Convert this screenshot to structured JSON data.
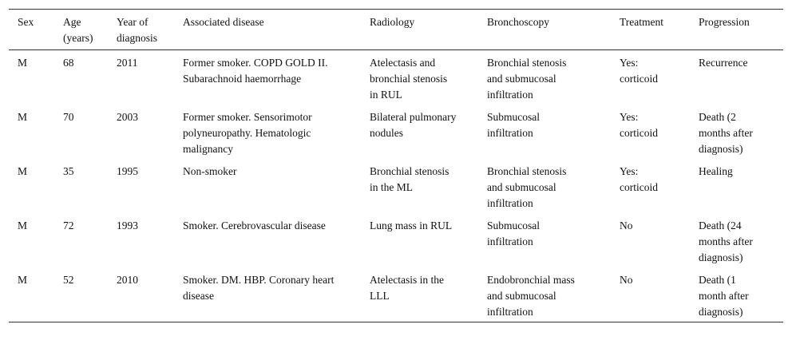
{
  "table": {
    "columns": [
      "Sex",
      "Age (years)",
      "Year of diagnosis",
      "Associated disease",
      "Radiology",
      "Bronchoscopy",
      "Treatment",
      "Progression"
    ],
    "rows": [
      [
        "M",
        "68",
        "2011",
        "Former smoker. COPD GOLD II. Subarachnoid haemorrhage",
        "Atelectasis and bronchial stenosis in RUL",
        "Bronchial stenosis and submucosal infiltration",
        "Yes: corticoid",
        "Recurrence"
      ],
      [
        "M",
        "70",
        "2003",
        "Former smoker. Sensorimotor polyneuropathy. Hematologic malignancy",
        "Bilateral pulmonary nodules",
        "Submucosal infiltration",
        "Yes: corticoid",
        "Death (2 months after diagnosis)"
      ],
      [
        "M",
        "35",
        "1995",
        "Non-smoker",
        "Bronchial stenosis in the ML",
        "Bronchial stenosis and submucosal infiltration",
        "Yes: corticoid",
        "Healing"
      ],
      [
        "M",
        "72",
        "1993",
        "Smoker. Cerebrovascular disease",
        "Lung mass in RUL",
        "Submucosal infiltration",
        "No",
        "Death (24 months after diagnosis)"
      ],
      [
        "M",
        "52",
        "2010",
        "Smoker. DM. HBP. Coronary heart disease",
        "Atelectasis in the LLL",
        "Endobronchial mass and submucosal infiltration",
        "No",
        "Death (1 month after diagnosis)"
      ]
    ]
  }
}
